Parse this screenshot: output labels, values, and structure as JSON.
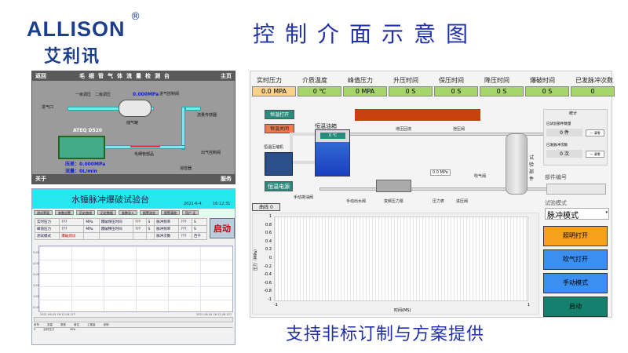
{
  "brand": {
    "name": "ALLISON",
    "registered": "®",
    "name_cn": "艾利讯"
  },
  "title": "控制介面示意图",
  "caption": "支持非标订制与方案提供",
  "capillary_panel": {
    "back": "返回",
    "title": "毛细管气体流量检测台",
    "home": "主页",
    "about": "关于",
    "service": "服务",
    "labels": {
      "inlet": "进气口",
      "reg1": "一级调压",
      "reg2": "二级调压",
      "tank": "储气罐",
      "valve_in": "进气控制阀",
      "sensor": "流量传感器",
      "capillary": "毛细管部品",
      "valve_out": "出气控制阀",
      "muffler": "消音器",
      "pressure_gauge": "0.000MPa",
      "device": "ATEQ D520",
      "diff_pressure": "压差：0.000MPa",
      "flow": "流量：0L/min"
    }
  },
  "burst_panel": {
    "title": "水锤脉冲爆破试验台",
    "date": "2021-6-4",
    "time": "16:12:31",
    "tabs": [
      "测试界面",
      "参数设置",
      "历史曲线",
      "历史数据",
      "参数导入",
      "报警浏览",
      "报警清除",
      "用户 无"
    ],
    "rows": [
      [
        "实时压力",
        "???",
        "MPa",
        "爆破保压时间",
        "???",
        "S",
        "脉冲频率",
        "???",
        "S"
      ],
      [
        "峰值压力",
        "???",
        "MPa",
        "爆破释压时间",
        "???",
        "S",
        "脉冲频率",
        "???",
        "S"
      ],
      [
        "测试模式",
        "爆破测试",
        "",
        "",
        "",
        "",
        "脉冲次数",
        "???",
        "百千"
      ]
    ],
    "start": "启动",
    "y_ticks": [
      "5.00",
      "4.00",
      "3.00",
      "2.00",
      "1.00",
      "0.00"
    ],
    "x_start": "2021-06-04 16:12:16.127",
    "x_end": "2021-06-04 16:12:26.127",
    "list_headers": [
      "序号",
      "变量",
      "类型",
      "单位",
      "工程量",
      "说明"
    ],
    "list_row": [
      "0",
      "实时压力",
      "",
      "MPa",
      "",
      ""
    ]
  },
  "control_panel": {
    "indicators": [
      {
        "label": "实时压力",
        "value": "0.0 MPA",
        "color": "#f8d28a"
      },
      {
        "label": "介质温度",
        "value": "0 ℃",
        "color": "#a7d56c"
      },
      {
        "label": "峰值压力",
        "value": "0 MPA",
        "color": "#a7d56c"
      },
      {
        "label": "升压时间",
        "value": "0 S",
        "color": "#a7d56c"
      },
      {
        "label": "保压时间",
        "value": "0 S",
        "color": "#a7d56c"
      },
      {
        "label": "降压时间",
        "value": "0 S",
        "color": "#a7d56c"
      },
      {
        "label": "爆破时间",
        "value": "0 S",
        "color": "#a7d56c"
      },
      {
        "label": "已发脉冲次数",
        "value": "0",
        "color": "#a7d56c"
      }
    ],
    "temp_on": "恒温打开",
    "temp_off": "恒温关闭",
    "temp_power": "恒温电源",
    "tank_label": "恒温油箱",
    "tank_temp": "0 ℃",
    "compressor": "恒温压缩机",
    "labels": {
      "return": "增压回流",
      "relief": "泄压阀",
      "test_part": "试验部件",
      "blow": "吹气阀",
      "drain": "手动排油阀",
      "water": "手动出水阀",
      "pump": "变频压力泵",
      "gauge": "压力表",
      "inlet": "进压阀",
      "gauge_value": "0.0 MPa"
    },
    "curve_tab": "曲线 0",
    "chart": {
      "ylabel": "压力（MPa）",
      "xlabel": "时间(MS)",
      "y_ticks": [
        "1",
        "0.8",
        "0.6",
        "0.4",
        "0.2",
        "0",
        "-0.2",
        "-0.4",
        "-0.6",
        "-0.8",
        "-1"
      ],
      "x_ticks": [
        "-1",
        "1"
      ]
    },
    "stats": {
      "title": "统计",
      "tested_label": "已试验部件数量",
      "tested": "0 件",
      "pulses_label": "已发脉冲次数",
      "pulses": "0 次",
      "clear": "一 清零"
    },
    "part_no": "部件编号",
    "mode_label": "试验模式",
    "mode": "脉冲模式",
    "buttons": [
      {
        "label": "照明打开",
        "color": "#f7a21b"
      },
      {
        "label": "吹气打开",
        "color": "#3b8ff0"
      },
      {
        "label": "手动模式",
        "color": "#3b8ff0"
      },
      {
        "label": "启动",
        "color": "#16806e"
      }
    ]
  }
}
